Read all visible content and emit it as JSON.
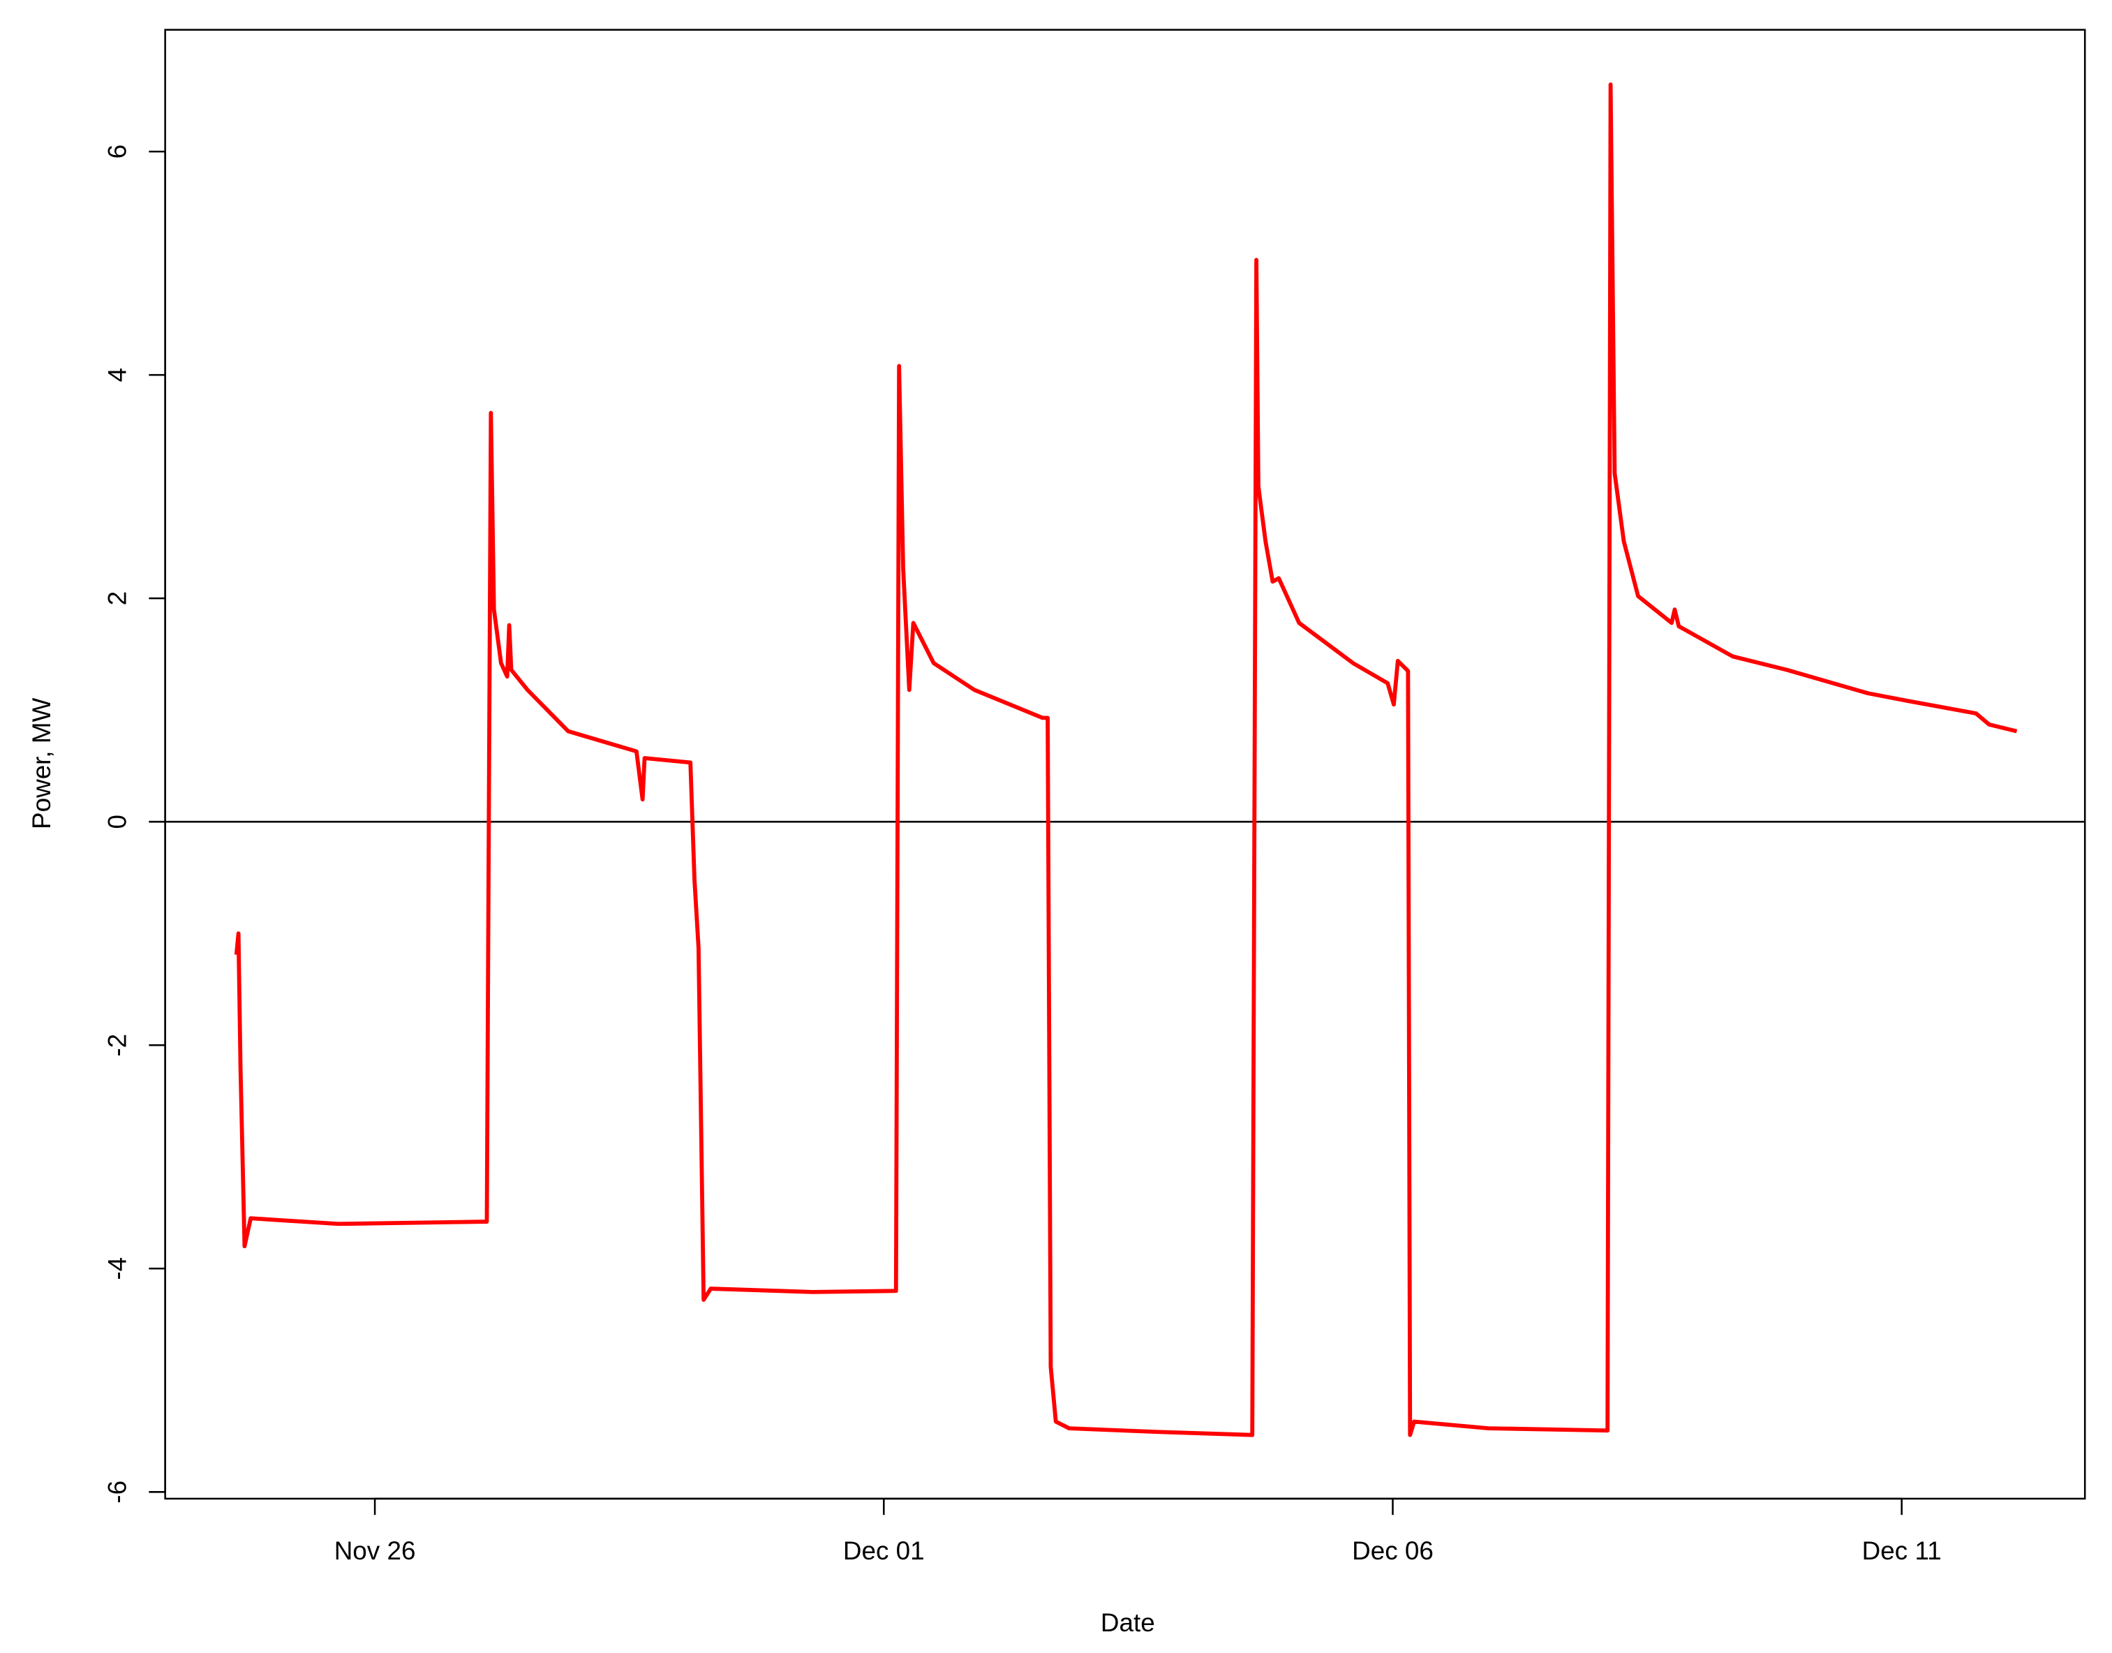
{
  "chart_data": {
    "type": "line",
    "xlabel": "Date",
    "ylabel": "Power, MW",
    "x": [
      -1.36,
      -1.34,
      -1.32,
      -1.28,
      -1.22,
      -0.36,
      1.1,
      1.12,
      1.14,
      1.17,
      1.24,
      1.3,
      1.32,
      1.34,
      1.5,
      1.9,
      2.57,
      2.63,
      2.65,
      3.1,
      3.14,
      3.18,
      3.23,
      3.3,
      4.3,
      5.12,
      5.15,
      5.19,
      5.25,
      5.29,
      5.49,
      5.89,
      6.56,
      6.61,
      6.64,
      6.69,
      6.82,
      7.62,
      8.62,
      8.66,
      8.68,
      8.75,
      8.82,
      8.88,
      9.08,
      9.61,
      9.95,
      10.01,
      10.05,
      10.15,
      10.17,
      10.21,
      10.94,
      12.11,
      12.14,
      12.18,
      12.27,
      12.41,
      12.74,
      12.77,
      12.81,
      13.34,
      13.87,
      14.67,
      15.07,
      15.73,
      15.86,
      16.13
    ],
    "series": [
      {
        "color": "#ff0000",
        "values": [
          -1.19,
          -1.0,
          -2.2,
          -3.8,
          -3.55,
          -3.6,
          -3.58,
          0.08,
          3.66,
          1.9,
          1.42,
          1.3,
          1.76,
          1.36,
          1.18,
          0.81,
          0.63,
          0.2,
          0.57,
          0.53,
          -0.52,
          -1.13,
          -4.28,
          -4.18,
          -4.21,
          -4.2,
          4.08,
          2.27,
          1.18,
          1.78,
          1.42,
          1.18,
          0.93,
          0.93,
          -4.88,
          -5.37,
          -5.43,
          -5.46,
          -5.49,
          5.03,
          3.0,
          2.51,
          2.15,
          2.18,
          1.78,
          1.42,
          1.24,
          1.05,
          1.44,
          1.35,
          -5.49,
          -5.37,
          -5.43,
          -5.45,
          6.6,
          3.12,
          2.51,
          2.02,
          1.78,
          1.9,
          1.75,
          1.48,
          1.36,
          1.15,
          1.08,
          0.97,
          0.87,
          0.81
        ]
      }
    ],
    "xlim": [
      -2.06,
      16.8
    ],
    "xticks": [
      {
        "value": 0,
        "label": "Nov 26"
      },
      {
        "value": 5,
        "label": "Dec 01"
      },
      {
        "value": 10,
        "label": "Dec 06"
      },
      {
        "value": 15,
        "label": "Dec 11"
      }
    ],
    "ylim": [
      -6.06,
      7.09
    ],
    "yticks": [
      -6,
      -4,
      -2,
      0,
      2,
      4,
      6
    ],
    "hline": 0
  }
}
